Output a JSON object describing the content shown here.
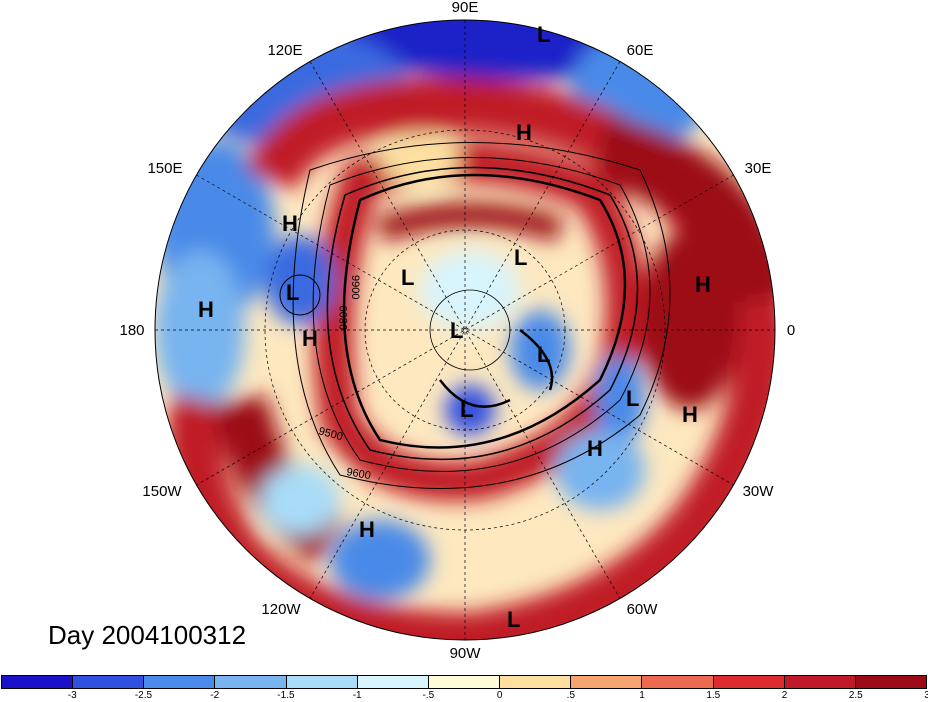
{
  "title": "Day 2004100312",
  "longitude_labels": {
    "top": "90E",
    "top_left": "120E",
    "top_right": "60E",
    "upper_left": "150E",
    "upper_right": "30E",
    "left": "180",
    "right": "0",
    "lower_left": "150W",
    "lower_right": "30W",
    "bottom_left": "120W",
    "bottom_right": "60W",
    "bottom": "90W"
  },
  "pressure_centers": [
    "L",
    "H",
    "H",
    "L",
    "H",
    "H",
    "L",
    "L",
    "L",
    "L",
    "L",
    "L",
    "H",
    "H",
    "H",
    "L"
  ],
  "contour_labels": [
    "9500",
    "9600",
    "9800",
    "9900"
  ],
  "colorbar": {
    "colors": [
      "#1a10c8",
      "#3050e0",
      "#4a8ae8",
      "#78b4f0",
      "#a8dcf8",
      "#d8f4fc",
      "#fffad8",
      "#fde0a0",
      "#f6a470",
      "#ec6a50",
      "#dc2c30",
      "#c01a28",
      "#9c0a18"
    ],
    "tick_labels": [
      "-3",
      "-2.5",
      "-2",
      "-1.5",
      "-1",
      "-.5",
      "0",
      ".5",
      "1",
      "1.5",
      "2",
      "2.5",
      "3"
    ]
  }
}
